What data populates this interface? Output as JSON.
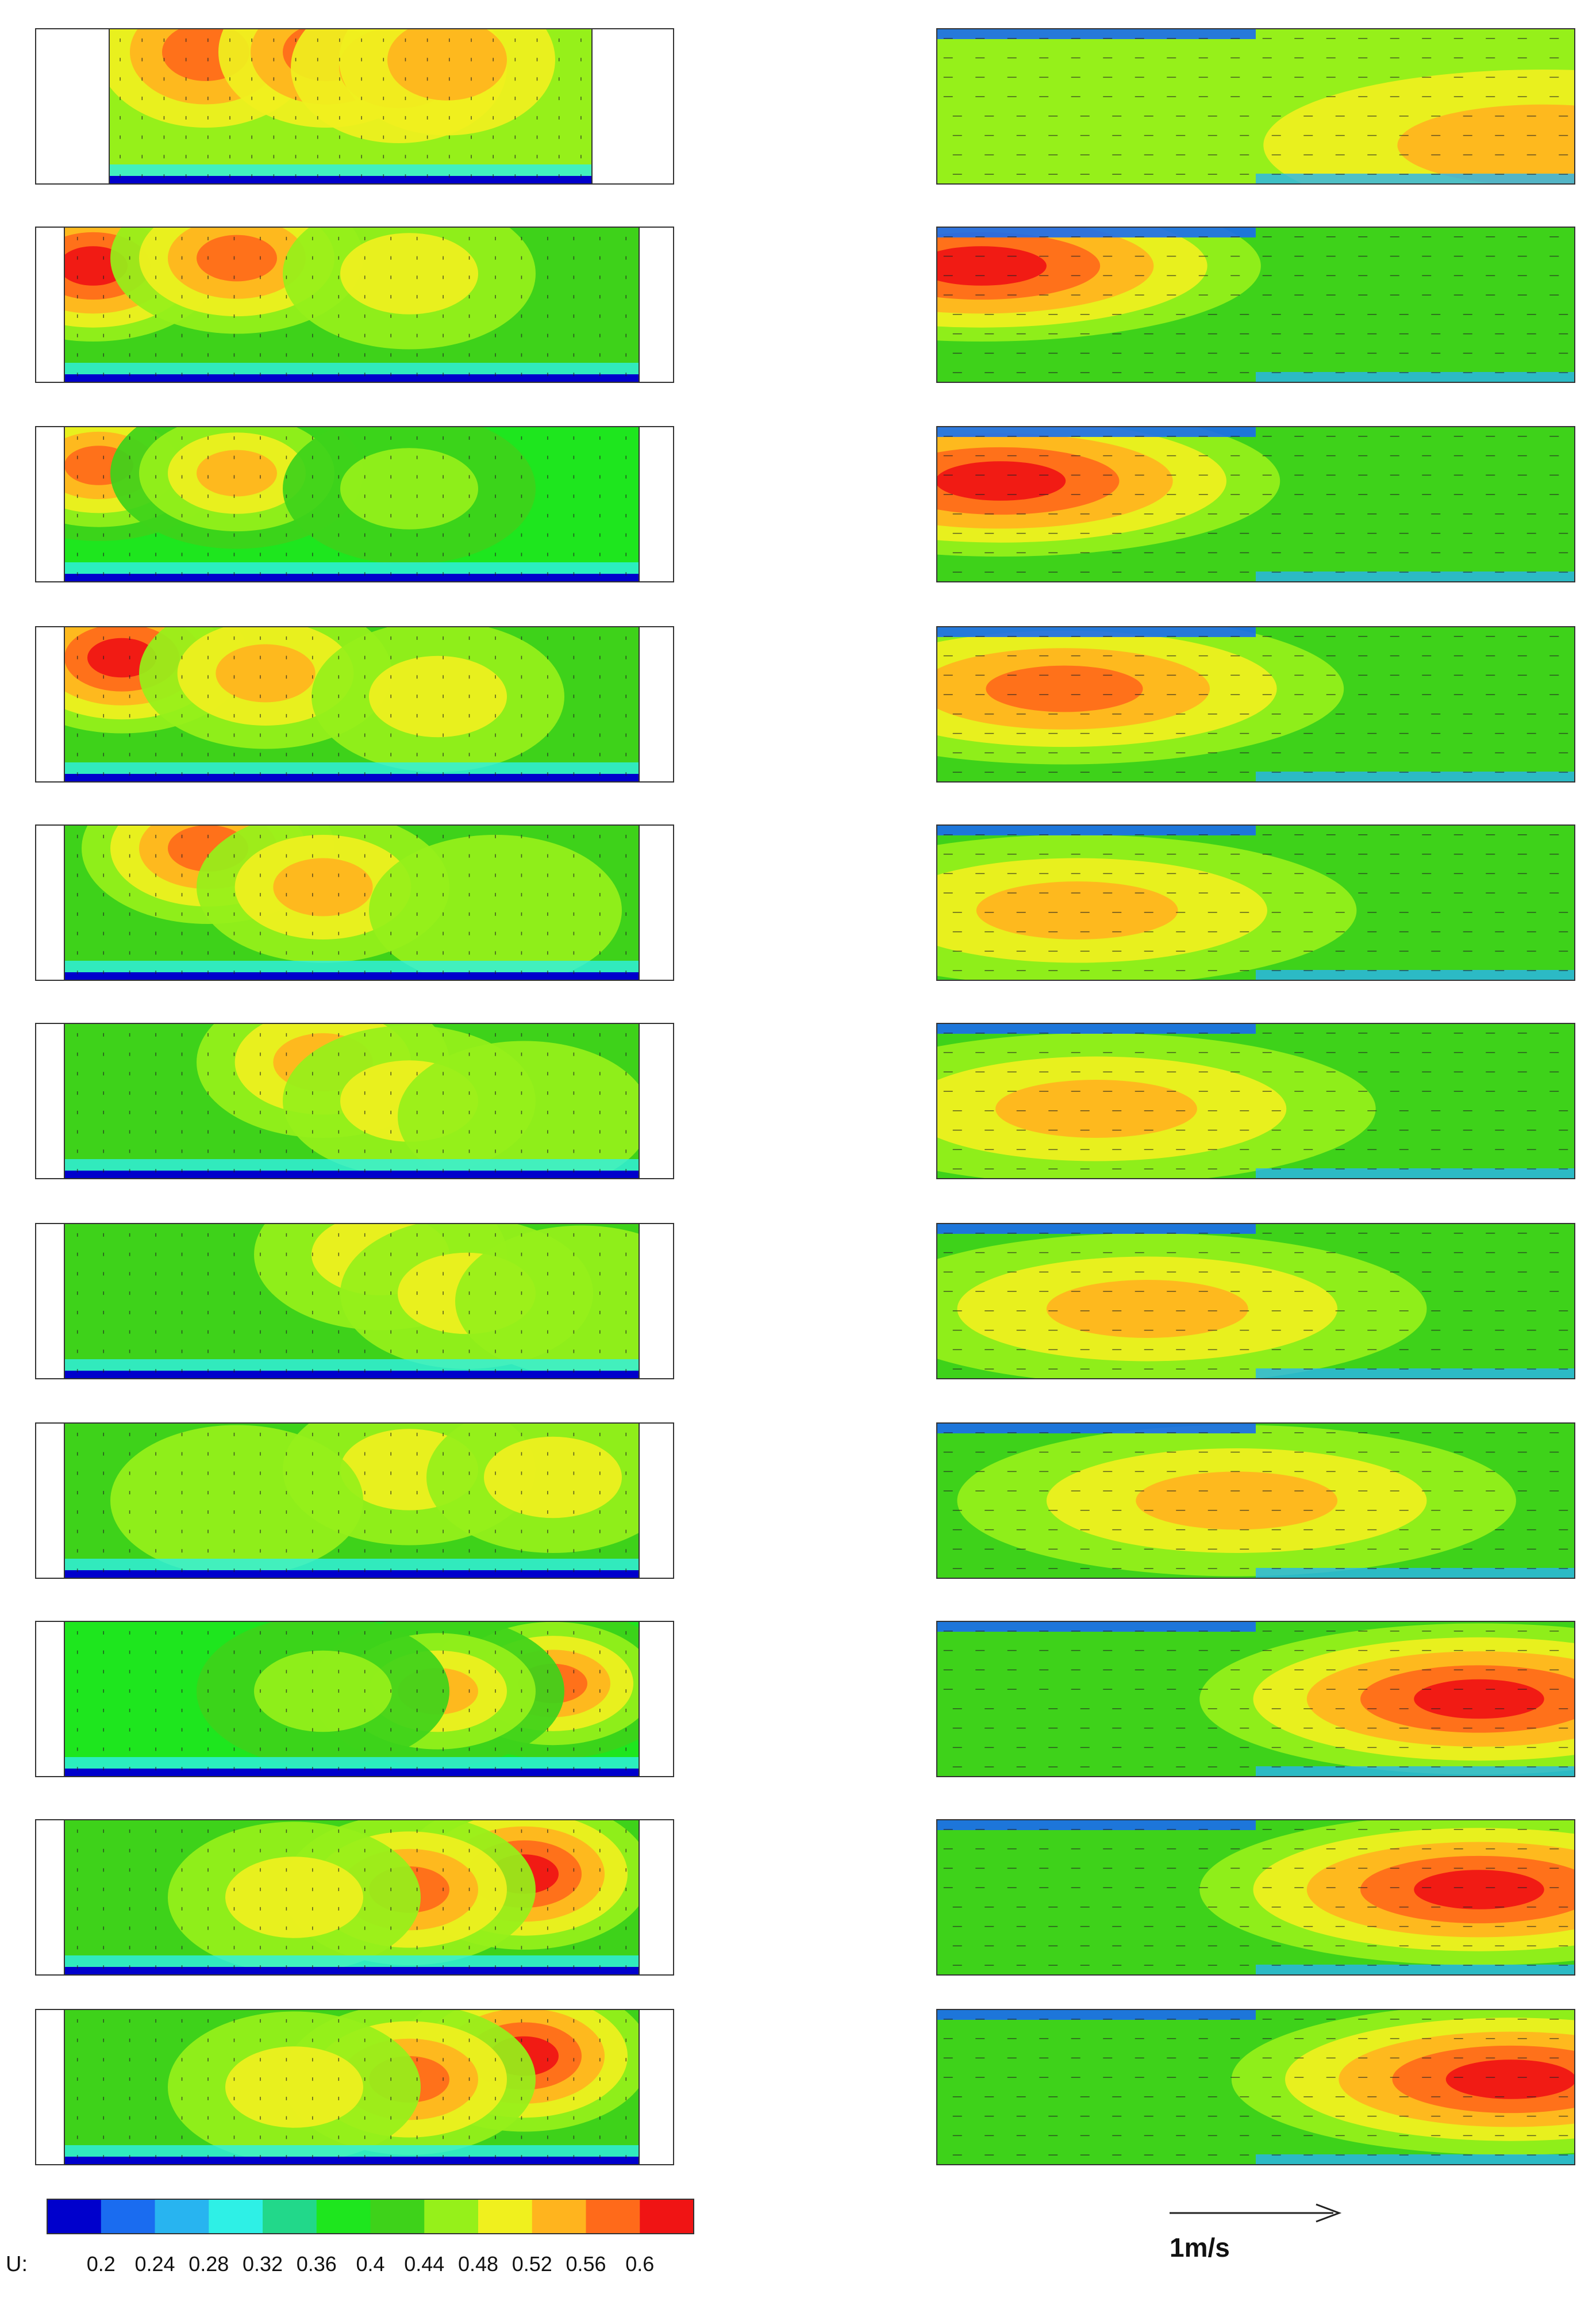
{
  "figure": {
    "colorbar": {
      "variable_label": "U:",
      "tick_labels": [
        "0.2",
        "0.24",
        "0.28",
        "0.32",
        "0.36",
        "0.4",
        "0.44",
        "0.48",
        "0.52",
        "0.56",
        "0.6"
      ],
      "colors": [
        "#0000cc",
        "#1a6cf0",
        "#28b4f0",
        "#2ef0e6",
        "#22d88a",
        "#1ee61e",
        "#3ed21a",
        "#96f01a",
        "#f0f01e",
        "#ffb41e",
        "#ff6a1a",
        "#f01414"
      ]
    },
    "reference_vector_label": "1m/s"
  },
  "chart_data": {
    "type": "heatmap",
    "description_units": "U",
    "colorbar_range": [
      0.2,
      0.6
    ],
    "columns": 2,
    "rows": 11,
    "panels_left": [
      {
        "row": 1,
        "hot_spots": [
          {
            "x": 0.2,
            "y": 0.85,
            "u": 0.54
          },
          {
            "x": 0.45,
            "y": 0.85,
            "u": 0.56
          },
          {
            "x": 0.6,
            "y": 0.75,
            "u": 0.5
          },
          {
            "x": 0.7,
            "y": 0.8,
            "u": 0.52
          }
        ],
        "base_u": 0.44
      },
      {
        "row": 2,
        "hot_spots": [
          {
            "x": 0.05,
            "y": 0.75,
            "u": 0.6
          },
          {
            "x": 0.3,
            "y": 0.8,
            "u": 0.54
          },
          {
            "x": 0.6,
            "y": 0.7,
            "u": 0.48
          }
        ],
        "base_u": 0.4
      },
      {
        "row": 3,
        "hot_spots": [
          {
            "x": 0.06,
            "y": 0.75,
            "u": 0.6
          },
          {
            "x": 0.3,
            "y": 0.7,
            "u": 0.52
          },
          {
            "x": 0.6,
            "y": 0.6,
            "u": 0.46
          }
        ],
        "base_u": 0.38
      },
      {
        "row": 4,
        "hot_spots": [
          {
            "x": 0.1,
            "y": 0.8,
            "u": 0.6
          },
          {
            "x": 0.35,
            "y": 0.7,
            "u": 0.54
          },
          {
            "x": 0.65,
            "y": 0.55,
            "u": 0.48
          }
        ],
        "base_u": 0.42
      },
      {
        "row": 5,
        "hot_spots": [
          {
            "x": 0.25,
            "y": 0.85,
            "u": 0.58
          },
          {
            "x": 0.45,
            "y": 0.6,
            "u": 0.52
          },
          {
            "x": 0.75,
            "y": 0.45,
            "u": 0.46
          }
        ],
        "base_u": 0.42
      },
      {
        "row": 6,
        "hot_spots": [
          {
            "x": 0.45,
            "y": 0.75,
            "u": 0.54
          },
          {
            "x": 0.6,
            "y": 0.5,
            "u": 0.5
          },
          {
            "x": 0.8,
            "y": 0.4,
            "u": 0.46
          }
        ],
        "base_u": 0.42
      },
      {
        "row": 7,
        "hot_spots": [
          {
            "x": 0.55,
            "y": 0.8,
            "u": 0.5
          },
          {
            "x": 0.7,
            "y": 0.55,
            "u": 0.48
          },
          {
            "x": 0.9,
            "y": 0.5,
            "u": 0.46
          }
        ],
        "base_u": 0.42
      },
      {
        "row": 8,
        "hot_spots": [
          {
            "x": 0.6,
            "y": 0.7,
            "u": 0.5
          },
          {
            "x": 0.85,
            "y": 0.65,
            "u": 0.5
          },
          {
            "x": 0.3,
            "y": 0.5,
            "u": 0.42
          }
        ],
        "base_u": 0.42
      },
      {
        "row": 9,
        "hot_spots": [
          {
            "x": 0.85,
            "y": 0.6,
            "u": 0.58
          },
          {
            "x": 0.65,
            "y": 0.55,
            "u": 0.52
          },
          {
            "x": 0.45,
            "y": 0.55,
            "u": 0.46
          }
        ],
        "base_u": 0.38
      },
      {
        "row": 10,
        "hot_spots": [
          {
            "x": 0.8,
            "y": 0.65,
            "u": 0.6
          },
          {
            "x": 0.6,
            "y": 0.55,
            "u": 0.54
          },
          {
            "x": 0.4,
            "y": 0.5,
            "u": 0.48
          }
        ],
        "base_u": 0.4
      },
      {
        "row": 11,
        "hot_spots": [
          {
            "x": 0.8,
            "y": 0.7,
            "u": 0.6
          },
          {
            "x": 0.6,
            "y": 0.55,
            "u": 0.54
          },
          {
            "x": 0.4,
            "y": 0.5,
            "u": 0.48
          }
        ],
        "base_u": 0.4
      }
    ],
    "panels_right": [
      {
        "row": 1,
        "hot_spots": [
          {
            "x": 0.95,
            "y": 0.25,
            "u": 0.5
          }
        ],
        "base_u": 0.44
      },
      {
        "row": 2,
        "hot_spots": [
          {
            "x": 0.07,
            "y": 0.75,
            "u": 0.6
          }
        ],
        "base_u": 0.4
      },
      {
        "row": 3,
        "hot_spots": [
          {
            "x": 0.1,
            "y": 0.65,
            "u": 0.6
          }
        ],
        "base_u": 0.4
      },
      {
        "row": 4,
        "hot_spots": [
          {
            "x": 0.2,
            "y": 0.6,
            "u": 0.58
          }
        ],
        "base_u": 0.42
      },
      {
        "row": 5,
        "hot_spots": [
          {
            "x": 0.22,
            "y": 0.45,
            "u": 0.54
          }
        ],
        "base_u": 0.42
      },
      {
        "row": 6,
        "hot_spots": [
          {
            "x": 0.25,
            "y": 0.45,
            "u": 0.54
          }
        ],
        "base_u": 0.42
      },
      {
        "row": 7,
        "hot_spots": [
          {
            "x": 0.33,
            "y": 0.45,
            "u": 0.54
          }
        ],
        "base_u": 0.42
      },
      {
        "row": 8,
        "hot_spots": [
          {
            "x": 0.47,
            "y": 0.5,
            "u": 0.54
          }
        ],
        "base_u": 0.42
      },
      {
        "row": 9,
        "hot_spots": [
          {
            "x": 0.85,
            "y": 0.5,
            "u": 0.6
          }
        ],
        "base_u": 0.4
      },
      {
        "row": 10,
        "hot_spots": [
          {
            "x": 0.85,
            "y": 0.55,
            "u": 0.6
          }
        ],
        "base_u": 0.4
      },
      {
        "row": 11,
        "hot_spots": [
          {
            "x": 0.9,
            "y": 0.55,
            "u": 0.6
          }
        ],
        "base_u": 0.4
      }
    ]
  }
}
